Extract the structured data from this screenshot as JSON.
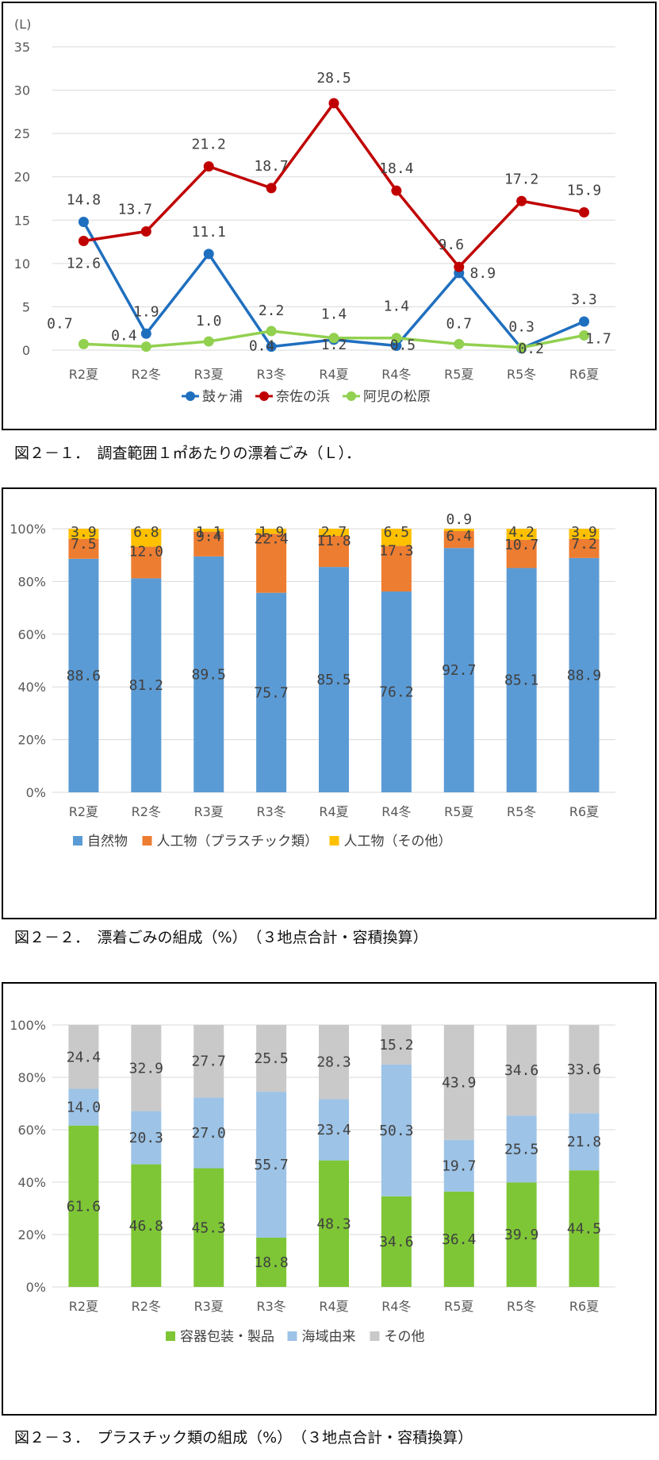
{
  "captions": {
    "fig1": "図２－１．　調査範囲１㎡あたりの漂着ごみ（Ｌ）．",
    "fig2": "図２－２．　漂着ごみの組成（%）　（３地点合計・容積換算）",
    "fig3": "図２－３．　プラスチック類の組成（%）　（３地点合計・容積換算）"
  },
  "chart_data": [
    {
      "type": "line",
      "unit_label": "(L)",
      "categories": [
        "R2夏",
        "R2冬",
        "R3夏",
        "R3冬",
        "R4夏",
        "R4冬",
        "R5夏",
        "R5冬",
        "R6夏"
      ],
      "ylim": [
        0,
        35
      ],
      "yticks": [
        0,
        5,
        10,
        15,
        20,
        25,
        30,
        35
      ],
      "grid": true,
      "legend": "bottom",
      "series": [
        {
          "name": "鼓ヶ浦",
          "color": "#1f6fbf",
          "values": [
            14.8,
            1.9,
            11.1,
            0.4,
            1.2,
            0.5,
            8.9,
            0.2,
            3.3
          ],
          "labels": [
            "14.8",
            "1.9",
            "11.1",
            "0.4",
            "1.2",
            "0.5",
            "8.9",
            "0.2",
            "3.3"
          ]
        },
        {
          "name": "奈佐の浜",
          "color": "#c00000",
          "values": [
            12.6,
            13.7,
            21.2,
            18.7,
            28.5,
            18.4,
            9.6,
            17.2,
            15.9
          ],
          "labels": [
            "12.6",
            "13.7",
            "21.2",
            "18.7",
            "28.5",
            "18.4",
            "9.6",
            "17.2",
            "15.9"
          ]
        },
        {
          "name": "阿児の松原",
          "color": "#92d050",
          "values": [
            0.7,
            0.4,
            1.0,
            2.2,
            1.4,
            1.4,
            0.7,
            0.3,
            1.7
          ],
          "labels": [
            "0.7",
            "0.4",
            "1.0",
            "2.2",
            "1.4",
            "1.4",
            "0.7",
            "0.3",
            "1.7"
          ]
        }
      ]
    },
    {
      "type": "bar",
      "stacked": "percent",
      "categories": [
        "R2夏",
        "R2冬",
        "R3夏",
        "R3冬",
        "R4夏",
        "R4冬",
        "R5夏",
        "R5冬",
        "R6夏"
      ],
      "ylim": [
        0,
        100
      ],
      "yticks": [
        "0%",
        "20%",
        "40%",
        "60%",
        "80%",
        "100%"
      ],
      "legend": "bottom",
      "series": [
        {
          "name": "自然物",
          "color": "#5b9bd5",
          "values": [
            88.6,
            81.2,
            89.5,
            75.7,
            85.5,
            76.2,
            92.7,
            85.1,
            88.9
          ],
          "labels": [
            "88.6",
            "81.2",
            "89.5",
            "75.7",
            "85.5",
            "76.2",
            "92.7",
            "85.1",
            "88.9"
          ]
        },
        {
          "name": "人工物（プラスチック類）",
          "color": "#ed7d31",
          "values": [
            7.5,
            12.0,
            9.4,
            22.4,
            11.8,
            17.3,
            6.4,
            10.7,
            7.2
          ],
          "labels": [
            "7.5",
            "12.0",
            "9.4",
            "22.4",
            "11.8",
            "17.3",
            "6.4",
            "10.7",
            "7.2"
          ]
        },
        {
          "name": "人工物（その他）",
          "color": "#ffc000",
          "values": [
            3.9,
            6.8,
            1.1,
            1.9,
            2.7,
            6.5,
            0.9,
            4.2,
            3.9
          ],
          "labels": [
            "3.9",
            "6.8",
            "1.1",
            "1.9",
            "2.7",
            "6.5",
            "0.9",
            "4.2",
            "3.9"
          ]
        }
      ]
    },
    {
      "type": "bar",
      "stacked": "percent",
      "categories": [
        "R2夏",
        "R2冬",
        "R3夏",
        "R3冬",
        "R4夏",
        "R4冬",
        "R5夏",
        "R5冬",
        "R6夏"
      ],
      "ylim": [
        0,
        100
      ],
      "yticks": [
        "0%",
        "20%",
        "40%",
        "60%",
        "80%",
        "100%"
      ],
      "legend": "bottom",
      "series": [
        {
          "name": "容器包装・製品",
          "color": "#7ec636",
          "values": [
            61.6,
            46.8,
            45.3,
            18.8,
            48.3,
            34.6,
            36.4,
            39.9,
            44.5
          ],
          "labels": [
            "61.6",
            "46.8",
            "45.3",
            "18.8",
            "48.3",
            "34.6",
            "36.4",
            "39.9",
            "44.5"
          ]
        },
        {
          "name": "海域由来",
          "color": "#9dc3e6",
          "values": [
            14.0,
            20.3,
            27.0,
            55.7,
            23.4,
            50.3,
            19.7,
            25.5,
            21.8
          ],
          "labels": [
            "14.0",
            "20.3",
            "27.0",
            "55.7",
            "23.4",
            "50.3",
            "19.7",
            "25.5",
            "21.8"
          ]
        },
        {
          "name": "その他",
          "color": "#c9c9c9",
          "values": [
            24.4,
            32.9,
            27.7,
            25.5,
            28.3,
            15.2,
            43.9,
            34.6,
            33.6
          ],
          "labels": [
            "24.4",
            "32.9",
            "27.7",
            "25.5",
            "28.3",
            "15.2",
            "43.9",
            "34.6",
            "33.6"
          ]
        }
      ]
    }
  ]
}
